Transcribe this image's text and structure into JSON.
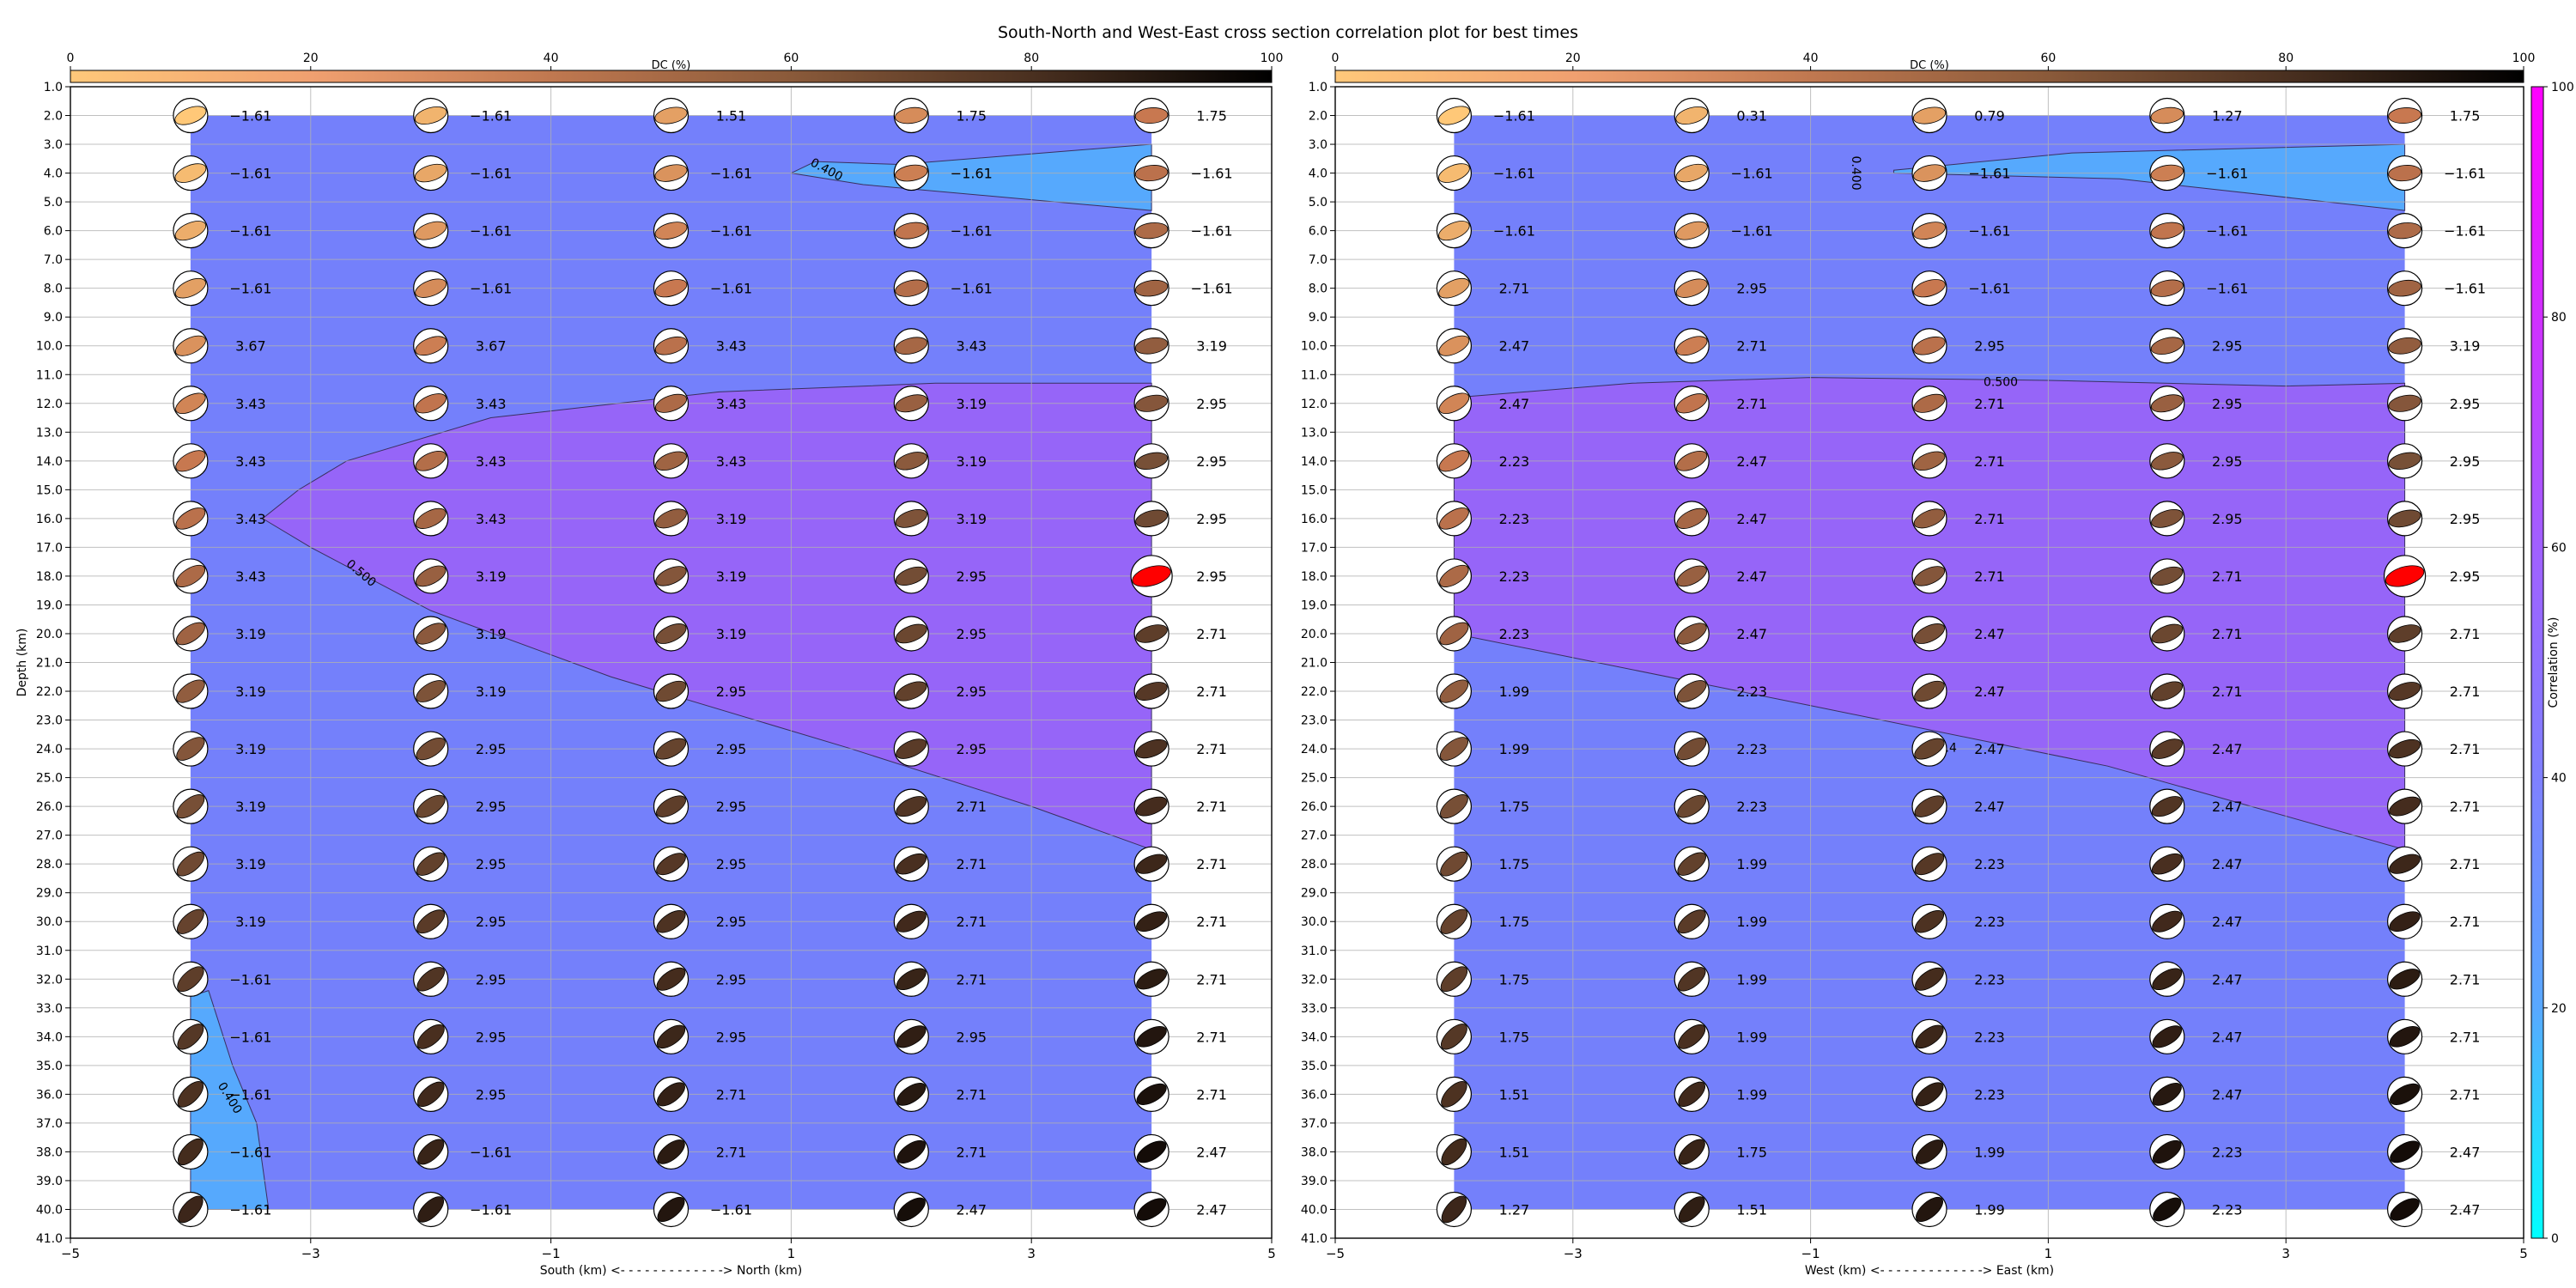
{
  "figure": {
    "title": "South-North and West-East cross section correlation plot for best times"
  },
  "chart_data": [
    {
      "type": "heatmap",
      "panel": "south-north",
      "xlabel": "South (km) <- - - - - - - - - - - - -> North (km)",
      "ylabel": "Depth (km)",
      "xlim": [
        -5,
        5
      ],
      "ylim": [
        41,
        1
      ],
      "y_inverted": true,
      "grid": true,
      "x_ticks": [
        -5,
        -3,
        -1,
        1,
        3,
        5
      ],
      "y_ticks": [
        "1.0",
        "2.0",
        "3.0",
        "4.0",
        "5.0",
        "6.0",
        "7.0",
        "8.0",
        "9.0",
        "10.0",
        "11.0",
        "12.0",
        "13.0",
        "14.0",
        "15.0",
        "16.0",
        "17.0",
        "18.0",
        "19.0",
        "20.0",
        "21.0",
        "22.0",
        "23.0",
        "24.0",
        "25.0",
        "26.0",
        "27.0",
        "28.0",
        "29.0",
        "30.0",
        "31.0",
        "32.0",
        "33.0",
        "34.0",
        "35.0",
        "36.0",
        "37.0",
        "38.0",
        "39.0",
        "40.0",
        "41.0"
      ],
      "columns_x": [
        -4,
        -2,
        0,
        2,
        4
      ],
      "rows_depth": [
        2,
        4,
        6,
        8,
        10,
        12,
        14,
        16,
        18,
        20,
        22,
        24,
        26,
        28,
        30,
        32,
        34,
        36,
        38,
        40
      ],
      "value_labels": [
        [
          "-1.61",
          "-1.61",
          "1.51",
          "1.75",
          "1.75"
        ],
        [
          "-1.61",
          "-1.61",
          "-1.61",
          "-1.61",
          "-1.61"
        ],
        [
          "-1.61",
          "-1.61",
          "-1.61",
          "-1.61",
          "-1.61"
        ],
        [
          "-1.61",
          "-1.61",
          "-1.61",
          "-1.61",
          "-1.61"
        ],
        [
          "3.67",
          "3.67",
          "3.43",
          "3.43",
          "3.19"
        ],
        [
          "3.43",
          "3.43",
          "3.43",
          "3.19",
          "2.95"
        ],
        [
          "3.43",
          "3.43",
          "3.43",
          "3.19",
          "2.95"
        ],
        [
          "3.43",
          "3.43",
          "3.19",
          "3.19",
          "2.95"
        ],
        [
          "3.43",
          "3.19",
          "3.19",
          "2.95",
          "2.95"
        ],
        [
          "3.19",
          "3.19",
          "3.19",
          "2.95",
          "2.71"
        ],
        [
          "3.19",
          "3.19",
          "2.95",
          "2.95",
          "2.71"
        ],
        [
          "3.19",
          "2.95",
          "2.95",
          "2.95",
          "2.71"
        ],
        [
          "3.19",
          "2.95",
          "2.95",
          "2.71",
          "2.71"
        ],
        [
          "3.19",
          "2.95",
          "2.95",
          "2.71",
          "2.71"
        ],
        [
          "3.19",
          "2.95",
          "2.95",
          "2.71",
          "2.71"
        ],
        [
          "-1.61",
          "2.95",
          "2.95",
          "2.71",
          "2.71"
        ],
        [
          "-1.61",
          "2.95",
          "2.95",
          "2.95",
          "2.71"
        ],
        [
          "-1.61",
          "2.95",
          "2.71",
          "2.71",
          "2.71"
        ],
        [
          "-1.61",
          "-1.61",
          "2.71",
          "2.71",
          "2.47"
        ],
        [
          "-1.61",
          "-1.61",
          "-1.61",
          "2.47",
          "2.47"
        ]
      ],
      "contour_labels": [
        {
          "text": "0.400",
          "x": 1.28,
          "depth": 4.0,
          "rotate": 28
        },
        {
          "text": "0.500",
          "x": -2.6,
          "depth": 18.0,
          "rotate": 40
        },
        {
          "text": "0.400",
          "x": -3.7,
          "depth": 36.2,
          "rotate": 58
        }
      ],
      "highlight": {
        "column": 4,
        "row": 8,
        "color": "#ff0000"
      }
    },
    {
      "type": "heatmap",
      "panel": "west-east",
      "xlabel": "West (km) <- - - - - - - - - - - - -> East (km)",
      "ylabel": "",
      "xlim": [
        -5,
        5
      ],
      "ylim": [
        41,
        1
      ],
      "y_inverted": true,
      "grid": true,
      "x_ticks": [
        -5,
        -3,
        -1,
        1,
        3,
        5
      ],
      "y_ticks": [
        "1.0",
        "2.0",
        "3.0",
        "4.0",
        "5.0",
        "6.0",
        "7.0",
        "8.0",
        "9.0",
        "10.0",
        "11.0",
        "12.0",
        "13.0",
        "14.0",
        "15.0",
        "16.0",
        "17.0",
        "18.0",
        "19.0",
        "20.0",
        "21.0",
        "22.0",
        "23.0",
        "24.0",
        "25.0",
        "26.0",
        "27.0",
        "28.0",
        "29.0",
        "30.0",
        "31.0",
        "32.0",
        "33.0",
        "34.0",
        "35.0",
        "36.0",
        "37.0",
        "38.0",
        "39.0",
        "40.0",
        "41.0"
      ],
      "columns_x": [
        -4,
        -2,
        0,
        2,
        4
      ],
      "rows_depth": [
        2,
        4,
        6,
        8,
        10,
        12,
        14,
        16,
        18,
        20,
        22,
        24,
        26,
        28,
        30,
        32,
        34,
        36,
        38,
        40
      ],
      "value_labels": [
        [
          "-1.61",
          "0.31",
          "0.79",
          "1.27",
          "1.75"
        ],
        [
          "-1.61",
          "-1.61",
          "-1.61",
          "-1.61",
          "-1.61"
        ],
        [
          "-1.61",
          "-1.61",
          "-1.61",
          "-1.61",
          "-1.61"
        ],
        [
          "2.71",
          "2.95",
          "-1.61",
          "-1.61",
          "-1.61"
        ],
        [
          "2.47",
          "2.71",
          "2.95",
          "2.95",
          "3.19"
        ],
        [
          "2.47",
          "2.71",
          "2.71",
          "2.95",
          "2.95"
        ],
        [
          "2.23",
          "2.47",
          "2.71",
          "2.95",
          "2.95"
        ],
        [
          "2.23",
          "2.47",
          "2.71",
          "2.95",
          "2.95"
        ],
        [
          "2.23",
          "2.47",
          "2.71",
          "2.71",
          "2.95"
        ],
        [
          "2.23",
          "2.47",
          "2.47",
          "2.71",
          "2.71"
        ],
        [
          "1.99",
          "2.23",
          "2.47",
          "2.71",
          "2.71"
        ],
        [
          "1.99",
          "2.23",
          "2.47",
          "2.47",
          "2.71"
        ],
        [
          "1.75",
          "2.23",
          "2.47",
          "2.47",
          "2.71"
        ],
        [
          "1.75",
          "1.99",
          "2.23",
          "2.47",
          "2.71"
        ],
        [
          "1.75",
          "1.99",
          "2.23",
          "2.47",
          "2.71"
        ],
        [
          "1.75",
          "1.99",
          "2.23",
          "2.47",
          "2.71"
        ],
        [
          "1.75",
          "1.99",
          "2.23",
          "2.47",
          "2.71"
        ],
        [
          "1.51",
          "1.99",
          "2.23",
          "2.47",
          "2.71"
        ],
        [
          "1.51",
          "1.75",
          "1.99",
          "2.23",
          "2.47"
        ],
        [
          "1.27",
          "1.51",
          "1.99",
          "2.23",
          "2.47"
        ]
      ],
      "contour_labels": [
        {
          "text": "0.400",
          "x": -0.65,
          "depth": 4.0,
          "rotate": 90
        },
        {
          "text": "0.500",
          "x": 0.6,
          "depth": 11.4,
          "rotate": 0
        },
        {
          "text": "0.4",
          "x": 0.15,
          "depth": 24.1,
          "rotate": 0
        }
      ],
      "highlight": {
        "column": 4,
        "row": 8,
        "color": "#ff0000"
      }
    }
  ],
  "dc_colorbar": {
    "label": "DC (%)",
    "ticks": [
      0,
      20,
      40,
      60,
      80,
      100
    ],
    "colors": [
      "#ffc87a",
      "#f0a070",
      "#c07850",
      "#8a5a3a",
      "#4a3020",
      "#000000"
    ]
  },
  "correlation_colorbar": {
    "label": "Correlation (%)",
    "ticks": [
      0,
      20,
      40,
      60,
      80,
      100
    ],
    "colors": [
      "#00ffff",
      "#58a8ff",
      "#7f80ff",
      "#a060ff",
      "#d030ff",
      "#ff00ff"
    ]
  },
  "fills": {
    "low": "#56a9fd",
    "mid": "#7480fb",
    "high": "#9665f8",
    "highlight": "#ff0000"
  }
}
